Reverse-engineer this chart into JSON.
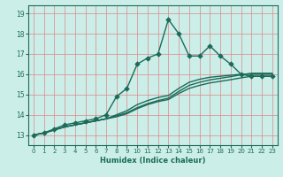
{
  "xlabel": "Humidex (Indice chaleur)",
  "bg_color": "#cceee8",
  "line_color": "#1a6b5a",
  "grid_color": "#dd8888",
  "xlim": [
    -0.5,
    23.5
  ],
  "ylim": [
    12.5,
    19.4
  ],
  "yticks": [
    13,
    14,
    15,
    16,
    17,
    18,
    19
  ],
  "xticks": [
    0,
    1,
    2,
    3,
    4,
    5,
    6,
    7,
    8,
    9,
    10,
    11,
    12,
    13,
    14,
    15,
    16,
    17,
    18,
    19,
    20,
    21,
    22,
    23
  ],
  "lines": [
    {
      "x": [
        0,
        1,
        2,
        3,
        4,
        5,
        6,
        7,
        8,
        9,
        10,
        11,
        12,
        13,
        14,
        15,
        16,
        17,
        18,
        19,
        20,
        21,
        22,
        23
      ],
      "y": [
        13.0,
        13.1,
        13.3,
        13.5,
        13.6,
        13.7,
        13.8,
        14.0,
        14.9,
        15.3,
        16.5,
        16.8,
        17.0,
        18.7,
        18.0,
        16.9,
        16.9,
        17.4,
        16.9,
        16.5,
        16.0,
        15.9,
        15.9,
        15.9
      ],
      "marker": "D",
      "markersize": 2.8,
      "linewidth": 1.0
    },
    {
      "x": [
        0,
        1,
        2,
        3,
        4,
        5,
        6,
        7,
        8,
        9,
        10,
        11,
        12,
        13,
        14,
        15,
        16,
        17,
        18,
        19,
        20,
        21,
        22,
        23
      ],
      "y": [
        13.0,
        13.1,
        13.25,
        13.4,
        13.5,
        13.6,
        13.7,
        13.8,
        14.0,
        14.2,
        14.5,
        14.7,
        14.85,
        14.95,
        15.3,
        15.6,
        15.75,
        15.85,
        15.9,
        15.95,
        16.0,
        16.0,
        16.0,
        16.0
      ],
      "marker": null,
      "markersize": 0,
      "linewidth": 1.0
    },
    {
      "x": [
        0,
        1,
        2,
        3,
        4,
        5,
        6,
        7,
        8,
        9,
        10,
        11,
        12,
        13,
        14,
        15,
        16,
        17,
        18,
        19,
        20,
        21,
        22,
        23
      ],
      "y": [
        13.0,
        13.1,
        13.25,
        13.4,
        13.5,
        13.6,
        13.7,
        13.8,
        13.95,
        14.1,
        14.35,
        14.55,
        14.7,
        14.82,
        15.15,
        15.45,
        15.6,
        15.72,
        15.8,
        15.88,
        15.97,
        16.05,
        16.05,
        16.05
      ],
      "marker": null,
      "markersize": 0,
      "linewidth": 1.0
    },
    {
      "x": [
        0,
        1,
        2,
        3,
        4,
        5,
        6,
        7,
        8,
        9,
        10,
        11,
        12,
        13,
        14,
        15,
        16,
        17,
        18,
        19,
        20,
        21,
        22,
        23
      ],
      "y": [
        13.0,
        13.1,
        13.25,
        13.4,
        13.5,
        13.6,
        13.7,
        13.8,
        13.9,
        14.05,
        14.3,
        14.5,
        14.65,
        14.75,
        15.05,
        15.3,
        15.45,
        15.57,
        15.65,
        15.73,
        15.82,
        15.9,
        15.9,
        15.9
      ],
      "marker": null,
      "markersize": 0,
      "linewidth": 1.0
    }
  ]
}
